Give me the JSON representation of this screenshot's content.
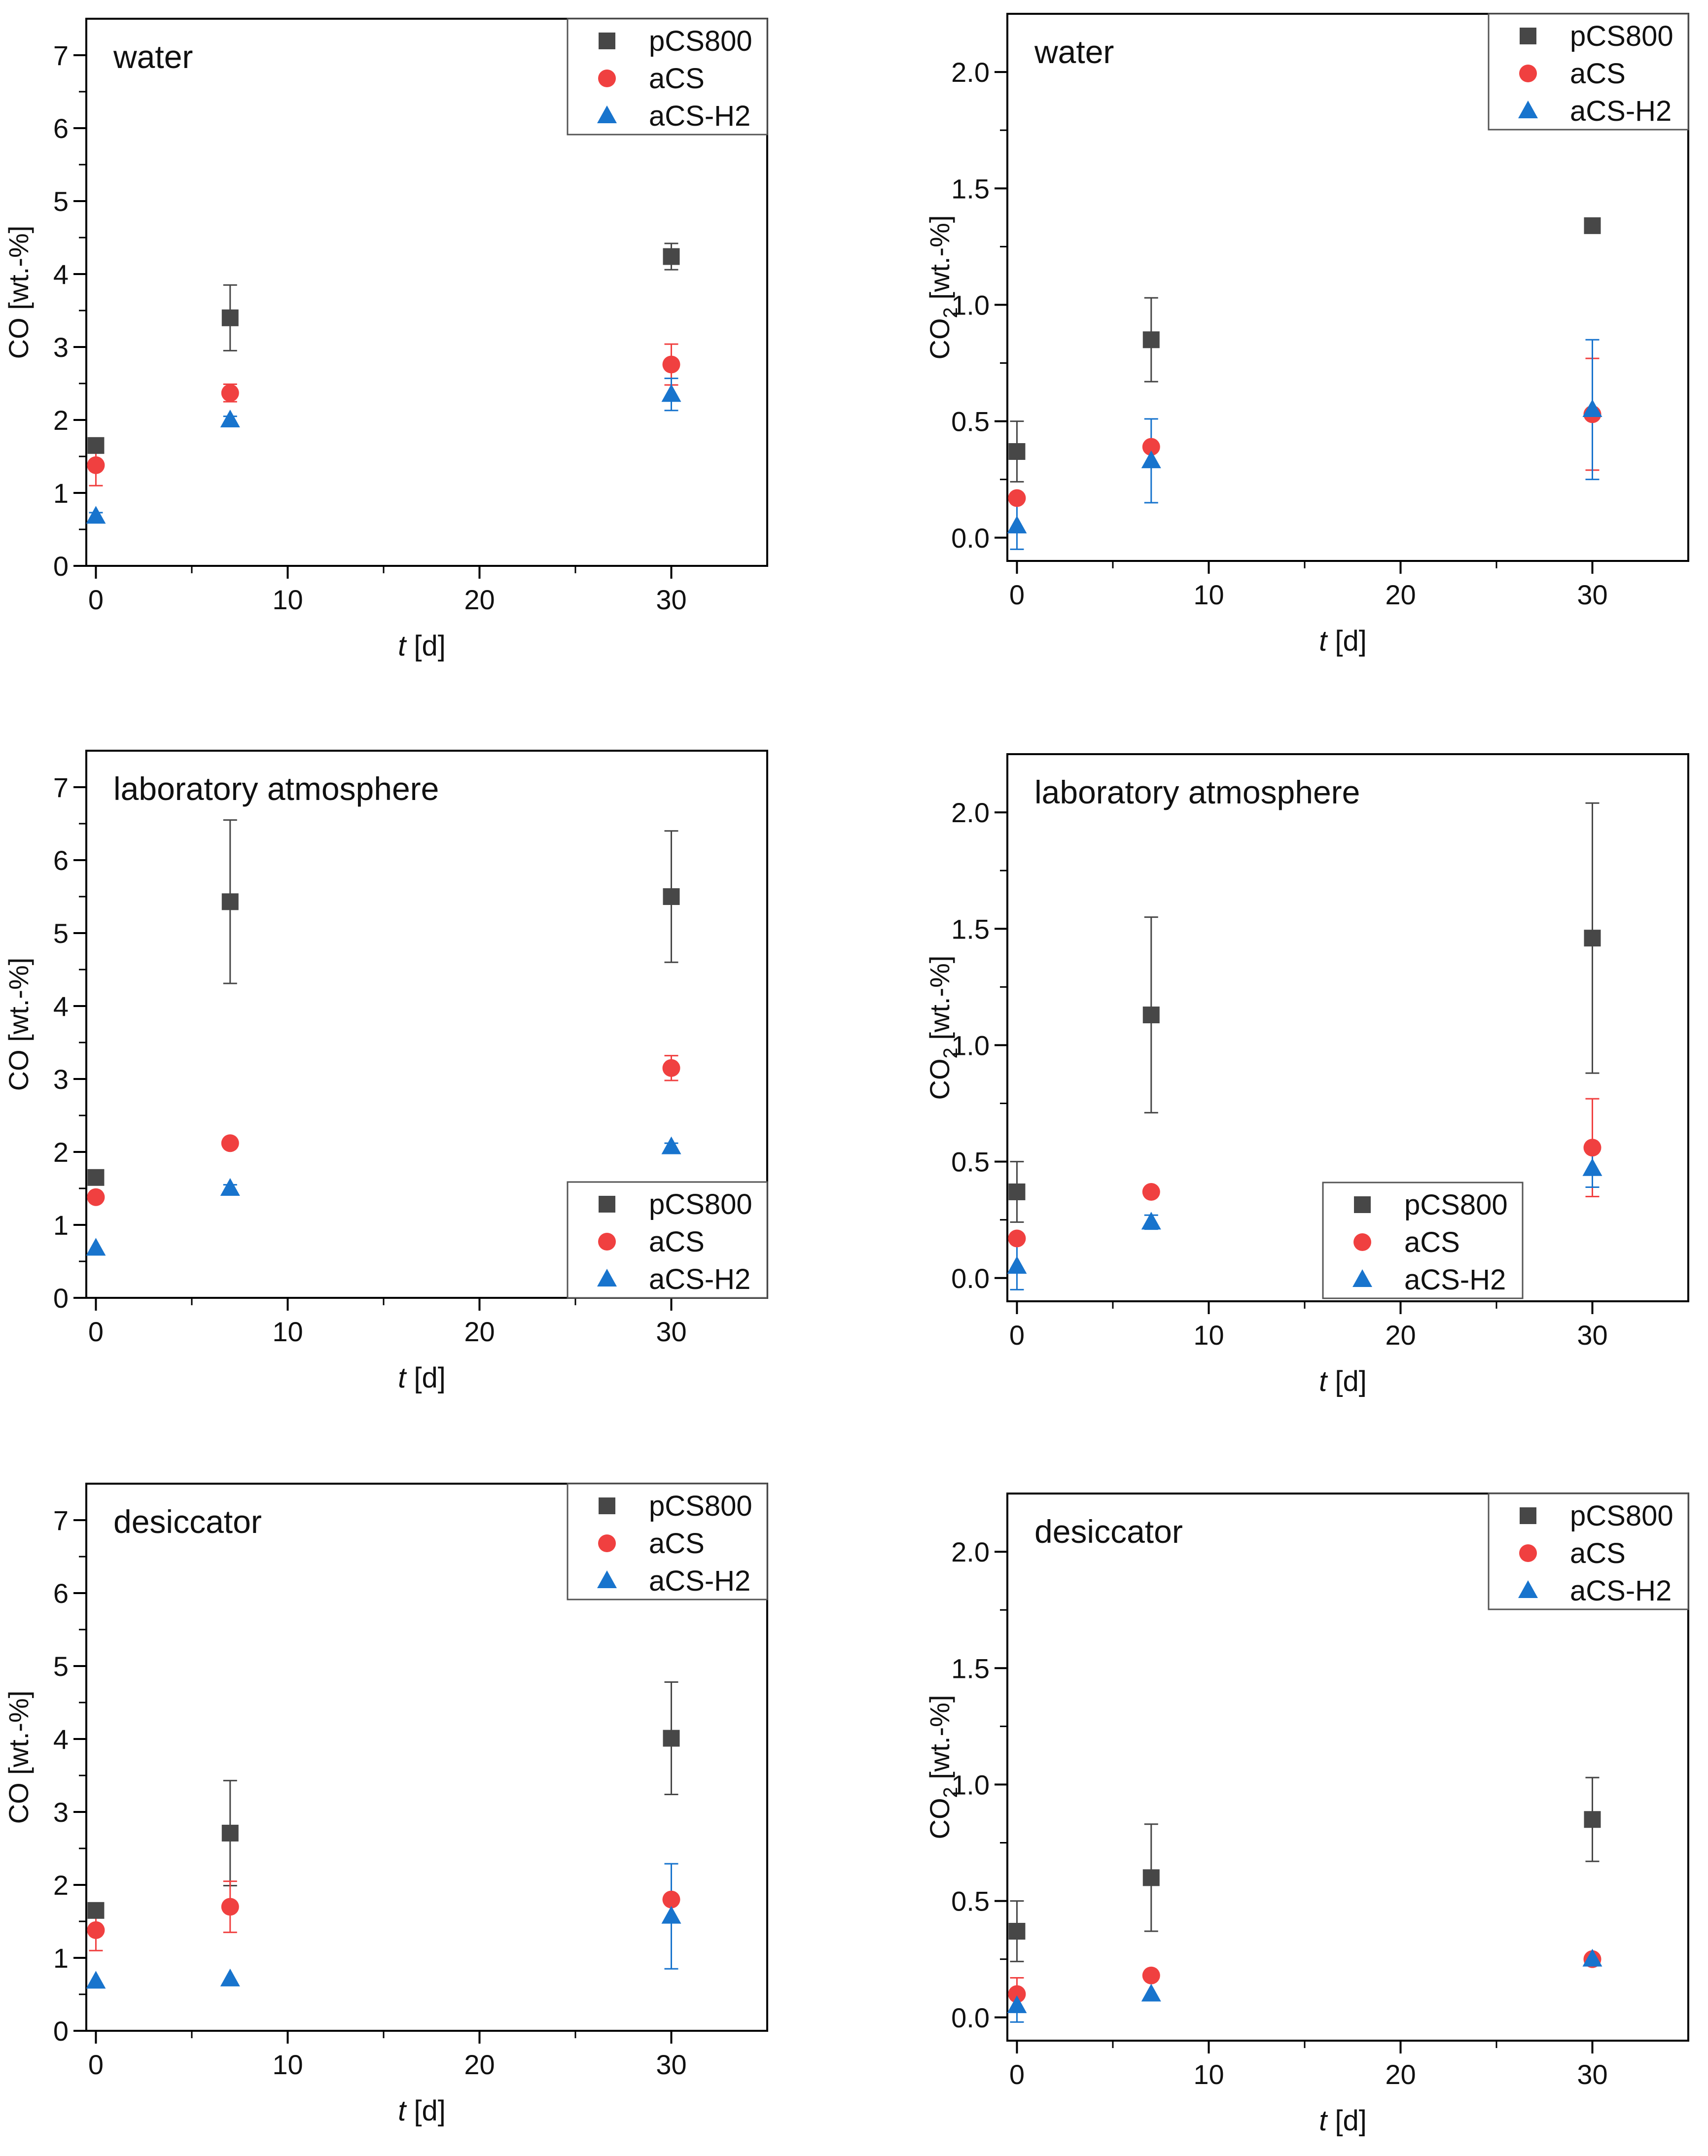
{
  "colors": {
    "pCS800": "#474747",
    "aCS": "#f04040",
    "aCS-H2": "#1874cd",
    "axis": "#000000"
  },
  "chart_data": [
    {
      "type": "scatter",
      "title": "water",
      "xlabel_italic": "t",
      "xlabel_rest": " [d]",
      "ylabel_main": "CO",
      "ylabel_sub": "",
      "ylabel_rest": " [wt.-%]",
      "xlim": [
        -0.5,
        35
      ],
      "ylim": [
        0,
        7.5
      ],
      "xticks": [
        0,
        10,
        20,
        30
      ],
      "yticks": [
        0,
        1,
        2,
        3,
        4,
        5,
        6,
        7
      ],
      "yticks_labels": [
        "0",
        "1",
        "2",
        "3",
        "4",
        "5",
        "6",
        "7"
      ],
      "legend": "top-right",
      "series": [
        {
          "name": "pCS800",
          "marker": "square",
          "x": [
            0,
            7,
            30
          ],
          "y": [
            1.65,
            3.4,
            4.24
          ],
          "err": [
            0.05,
            0.45,
            0.18
          ]
        },
        {
          "name": "aCS",
          "marker": "circle",
          "x": [
            0,
            7,
            30
          ],
          "y": [
            1.38,
            2.37,
            2.76
          ],
          "err": [
            0.28,
            0.12,
            0.28
          ]
        },
        {
          "name": "aCS-H2",
          "marker": "triangle",
          "x": [
            0,
            7,
            30
          ],
          "y": [
            0.68,
            2.0,
            2.35
          ],
          "err": [
            0.05,
            0.05,
            0.22
          ]
        }
      ]
    },
    {
      "type": "scatter",
      "title": "water",
      "xlabel_italic": "t",
      "xlabel_rest": " [d]",
      "ylabel_main": "CO",
      "ylabel_sub": "2",
      "ylabel_rest": " [wt.-%]",
      "xlim": [
        -0.5,
        35
      ],
      "ylim": [
        -0.1,
        2.25
      ],
      "xticks": [
        0,
        10,
        20,
        30
      ],
      "yticks": [
        0,
        0.5,
        1.0,
        1.5,
        2.0
      ],
      "yticks_labels": [
        "0.0",
        "0.5",
        "1.0",
        "1.5",
        "2.0"
      ],
      "legend": "top-right",
      "series": [
        {
          "name": "pCS800",
          "marker": "square",
          "x": [
            0,
            7,
            30
          ],
          "y": [
            0.37,
            0.85,
            1.34
          ],
          "err": [
            0.13,
            0.18,
            0.0
          ]
        },
        {
          "name": "aCS",
          "marker": "circle",
          "x": [
            0,
            7,
            30
          ],
          "y": [
            0.17,
            0.39,
            0.53
          ],
          "err": [
            0.0,
            0.0,
            0.24
          ]
        },
        {
          "name": "aCS-H2",
          "marker": "triangle",
          "x": [
            0,
            7,
            30
          ],
          "y": [
            0.05,
            0.33,
            0.55
          ],
          "err": [
            0.1,
            0.18,
            0.3
          ]
        }
      ]
    },
    {
      "type": "scatter",
      "title": "laboratory atmosphere",
      "xlabel_italic": "t",
      "xlabel_rest": " [d]",
      "ylabel_main": "CO",
      "ylabel_sub": "",
      "ylabel_rest": " [wt.-%]",
      "xlim": [
        -0.5,
        35
      ],
      "ylim": [
        0,
        7.5
      ],
      "xticks": [
        0,
        10,
        20,
        30
      ],
      "yticks": [
        0,
        1,
        2,
        3,
        4,
        5,
        6,
        7
      ],
      "yticks_labels": [
        "0",
        "1",
        "2",
        "3",
        "4",
        "5",
        "6",
        "7"
      ],
      "legend": "bottom-right",
      "series": [
        {
          "name": "pCS800",
          "marker": "square",
          "x": [
            0,
            7,
            30
          ],
          "y": [
            1.65,
            5.43,
            5.5
          ],
          "err": [
            0.0,
            1.12,
            0.9
          ]
        },
        {
          "name": "aCS",
          "marker": "circle",
          "x": [
            0,
            7,
            30
          ],
          "y": [
            1.38,
            2.12,
            3.15
          ],
          "err": [
            0.0,
            0.05,
            0.17
          ]
        },
        {
          "name": "aCS-H2",
          "marker": "triangle",
          "x": [
            0,
            7,
            30
          ],
          "y": [
            0.68,
            1.5,
            2.07
          ],
          "err": [
            0.0,
            0.05,
            0.05
          ]
        }
      ]
    },
    {
      "type": "scatter",
      "title": "laboratory atmosphere",
      "xlabel_italic": "t",
      "xlabel_rest": " [d]",
      "ylabel_main": "CO",
      "ylabel_sub": "2",
      "ylabel_rest": " [wt.-%]",
      "xlim": [
        -0.5,
        35
      ],
      "ylim": [
        -0.1,
        2.25
      ],
      "xticks": [
        0,
        10,
        20,
        30
      ],
      "yticks": [
        0,
        0.5,
        1.0,
        1.5,
        2.0
      ],
      "yticks_labels": [
        "0.0",
        "0.5",
        "1.0",
        "1.5",
        "2.0"
      ],
      "legend": "bottom-center",
      "series": [
        {
          "name": "pCS800",
          "marker": "square",
          "x": [
            0,
            7,
            30
          ],
          "y": [
            0.37,
            1.13,
            1.46
          ],
          "err": [
            0.13,
            0.42,
            0.58
          ]
        },
        {
          "name": "aCS",
          "marker": "circle",
          "x": [
            0,
            7,
            30
          ],
          "y": [
            0.17,
            0.37,
            0.56
          ],
          "err": [
            0.0,
            0.0,
            0.21
          ]
        },
        {
          "name": "aCS-H2",
          "marker": "triangle",
          "x": [
            0,
            7,
            30
          ],
          "y": [
            0.05,
            0.24,
            0.47
          ],
          "err": [
            0.1,
            0.03,
            0.08
          ]
        }
      ]
    },
    {
      "type": "scatter",
      "title": "desiccator",
      "xlabel_italic": "t",
      "xlabel_rest": " [d]",
      "ylabel_main": "CO",
      "ylabel_sub": "",
      "ylabel_rest": " [wt.-%]",
      "xlim": [
        -0.5,
        35
      ],
      "ylim": [
        0,
        7.5
      ],
      "xticks": [
        0,
        10,
        20,
        30
      ],
      "yticks": [
        0,
        1,
        2,
        3,
        4,
        5,
        6,
        7
      ],
      "yticks_labels": [
        "0",
        "1",
        "2",
        "3",
        "4",
        "5",
        "6",
        "7"
      ],
      "legend": "top-right",
      "series": [
        {
          "name": "pCS800",
          "marker": "square",
          "x": [
            0,
            7,
            30
          ],
          "y": [
            1.65,
            2.71,
            4.01
          ],
          "err": [
            0.0,
            0.72,
            0.77
          ]
        },
        {
          "name": "aCS",
          "marker": "circle",
          "x": [
            0,
            7,
            30
          ],
          "y": [
            1.38,
            1.7,
            1.8
          ],
          "err": [
            0.28,
            0.35,
            0.0
          ]
        },
        {
          "name": "aCS-H2",
          "marker": "triangle",
          "x": [
            0,
            7,
            30
          ],
          "y": [
            0.68,
            0.71,
            1.57
          ],
          "err": [
            0.0,
            0.0,
            0.72
          ]
        }
      ]
    },
    {
      "type": "scatter",
      "title": "desiccator",
      "xlabel_italic": "t",
      "xlabel_rest": " [d]",
      "ylabel_main": "CO",
      "ylabel_sub": "2",
      "ylabel_rest": " [wt.-%]",
      "xlim": [
        -0.5,
        35
      ],
      "ylim": [
        -0.1,
        2.25
      ],
      "xticks": [
        0,
        10,
        20,
        30
      ],
      "yticks": [
        0,
        0.5,
        1.0,
        1.5,
        2.0
      ],
      "yticks_labels": [
        "0.0",
        "0.5",
        "1.0",
        "1.5",
        "2.0"
      ],
      "legend": "top-right",
      "series": [
        {
          "name": "pCS800",
          "marker": "square",
          "x": [
            0,
            7,
            30
          ],
          "y": [
            0.37,
            0.6,
            0.85
          ],
          "err": [
            0.13,
            0.23,
            0.18
          ]
        },
        {
          "name": "aCS",
          "marker": "circle",
          "x": [
            0,
            7,
            30
          ],
          "y": [
            0.1,
            0.18,
            0.25
          ],
          "err": [
            0.07,
            0.0,
            0.0
          ]
        },
        {
          "name": "aCS-H2",
          "marker": "triangle",
          "x": [
            0,
            7,
            30
          ],
          "y": [
            0.05,
            0.1,
            0.25
          ],
          "err": [
            0.07,
            0.0,
            0.0
          ]
        }
      ]
    }
  ]
}
